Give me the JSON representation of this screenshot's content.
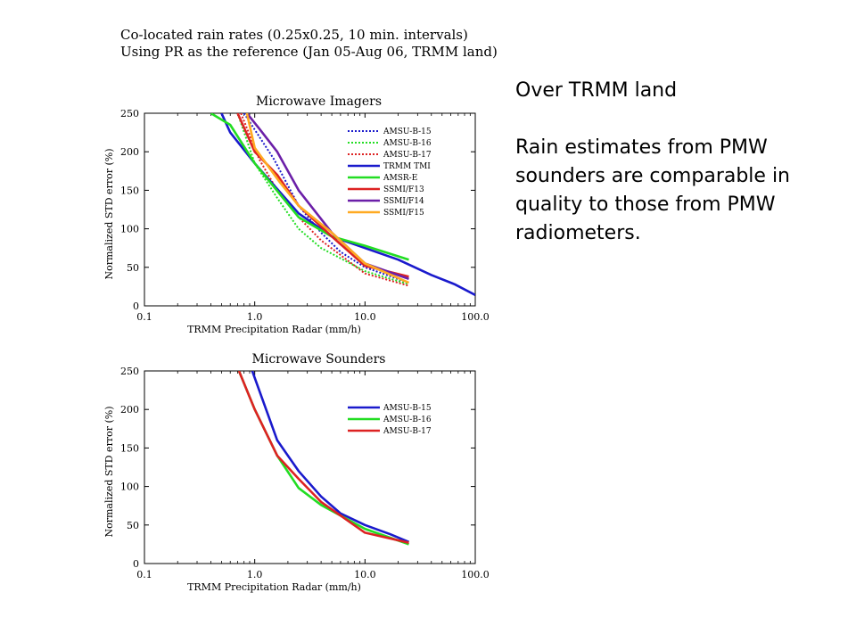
{
  "header": {
    "line1": "Co-located rain rates (0.25x0.25, 10 min. intervals)",
    "line2": "Using PR as the reference (Jan 05-Aug 06, TRMM land)"
  },
  "note": {
    "heading": "Over TRMM land",
    "body": "Rain estimates from PMW sounders are comparable in quality to those from PMW radiometers."
  },
  "chart_data": [
    {
      "type": "line",
      "title": "Microwave Imagers",
      "xlabel": "TRMM Precipitation Radar (mm/h)",
      "ylabel": "Normalized STD error (%)",
      "xscale": "log",
      "xlim": [
        0.1,
        100
      ],
      "ylim": [
        0,
        250
      ],
      "xticks": [
        "0.1",
        "1.0",
        "10.0",
        "100.0"
      ],
      "yticks": [
        "0",
        "50",
        "100",
        "150",
        "200",
        "250"
      ],
      "legend_position": "top-right",
      "series": [
        {
          "name": "AMSU-B-15",
          "color": "#1a1acc",
          "dash": "dotted",
          "x": [
            0.8,
            1.5,
            2.5,
            4,
            6,
            10,
            25
          ],
          "y": [
            250,
            190,
            130,
            95,
            70,
            50,
            30
          ]
        },
        {
          "name": "AMSU-B-16",
          "color": "#22dd22",
          "dash": "dotted",
          "x": [
            0.7,
            1.0,
            1.6,
            2.5,
            4,
            10,
            25
          ],
          "y": [
            250,
            185,
            140,
            100,
            75,
            45,
            28
          ]
        },
        {
          "name": "AMSU-B-17",
          "color": "#dd2222",
          "dash": "dotted",
          "x": [
            0.75,
            1.1,
            1.6,
            2.5,
            4,
            10,
            25
          ],
          "y": [
            250,
            190,
            150,
            115,
            85,
            42,
            26
          ]
        },
        {
          "name": "TRMM TMI",
          "color": "#1a1acc",
          "dash": "solid",
          "x": [
            0.5,
            0.6,
            1.0,
            2.5,
            5,
            10,
            20,
            40,
            65,
            100
          ],
          "y": [
            250,
            225,
            185,
            120,
            90,
            75,
            60,
            40,
            28,
            14
          ]
        },
        {
          "name": "AMSR-E",
          "color": "#22dd22",
          "dash": "solid",
          "x": [
            0.4,
            0.6,
            1.0,
            2.5,
            5,
            10,
            25
          ],
          "y": [
            250,
            235,
            185,
            115,
            90,
            78,
            60
          ]
        },
        {
          "name": "SSMI/F13",
          "color": "#dd2222",
          "dash": "solid",
          "x": [
            0.7,
            1.0,
            1.6,
            2.5,
            5,
            10,
            25
          ],
          "y": [
            250,
            200,
            170,
            130,
            90,
            52,
            38
          ]
        },
        {
          "name": "SSMI/F14",
          "color": "#6b1fa8",
          "dash": "solid",
          "x": [
            0.85,
            1.1,
            1.6,
            2.5,
            5,
            10,
            25
          ],
          "y": [
            250,
            230,
            200,
            150,
            95,
            55,
            35
          ]
        },
        {
          "name": "SSMI/F15",
          "color": "#ffaa22",
          "dash": "solid",
          "x": [
            0.85,
            1.0,
            1.7,
            2.5,
            5,
            10,
            25
          ],
          "y": [
            250,
            205,
            160,
            130,
            95,
            55,
            30
          ]
        }
      ]
    },
    {
      "type": "line",
      "title": "Microwave Sounders",
      "xlabel": "TRMM Precipitation Radar (mm/h)",
      "ylabel": "Normalized STD error (%)",
      "xscale": "log",
      "xlim": [
        0.1,
        100
      ],
      "ylim": [
        0,
        250
      ],
      "xticks": [
        "0.1",
        "1.0",
        "10.0",
        "100.0"
      ],
      "yticks": [
        "0",
        "50",
        "100",
        "150",
        "200",
        "250"
      ],
      "legend_position": "top-right",
      "series": [
        {
          "name": "AMSU-B-15",
          "color": "#1a1acc",
          "dash": "solid",
          "x": [
            0.95,
            1.6,
            2.5,
            4,
            6,
            10,
            17,
            25
          ],
          "y": [
            250,
            160,
            120,
            87,
            65,
            50,
            38,
            28
          ]
        },
        {
          "name": "AMSU-B-16",
          "color": "#22dd22",
          "dash": "solid",
          "x": [
            0.72,
            1.0,
            1.6,
            2.5,
            4,
            10,
            25
          ],
          "y": [
            250,
            200,
            140,
            98,
            76,
            45,
            25
          ]
        },
        {
          "name": "AMSU-B-17",
          "color": "#dd2222",
          "dash": "solid",
          "x": [
            0.72,
            1.0,
            1.6,
            2.5,
            4,
            10,
            25
          ],
          "y": [
            250,
            200,
            140,
            110,
            80,
            40,
            27
          ]
        }
      ]
    }
  ]
}
